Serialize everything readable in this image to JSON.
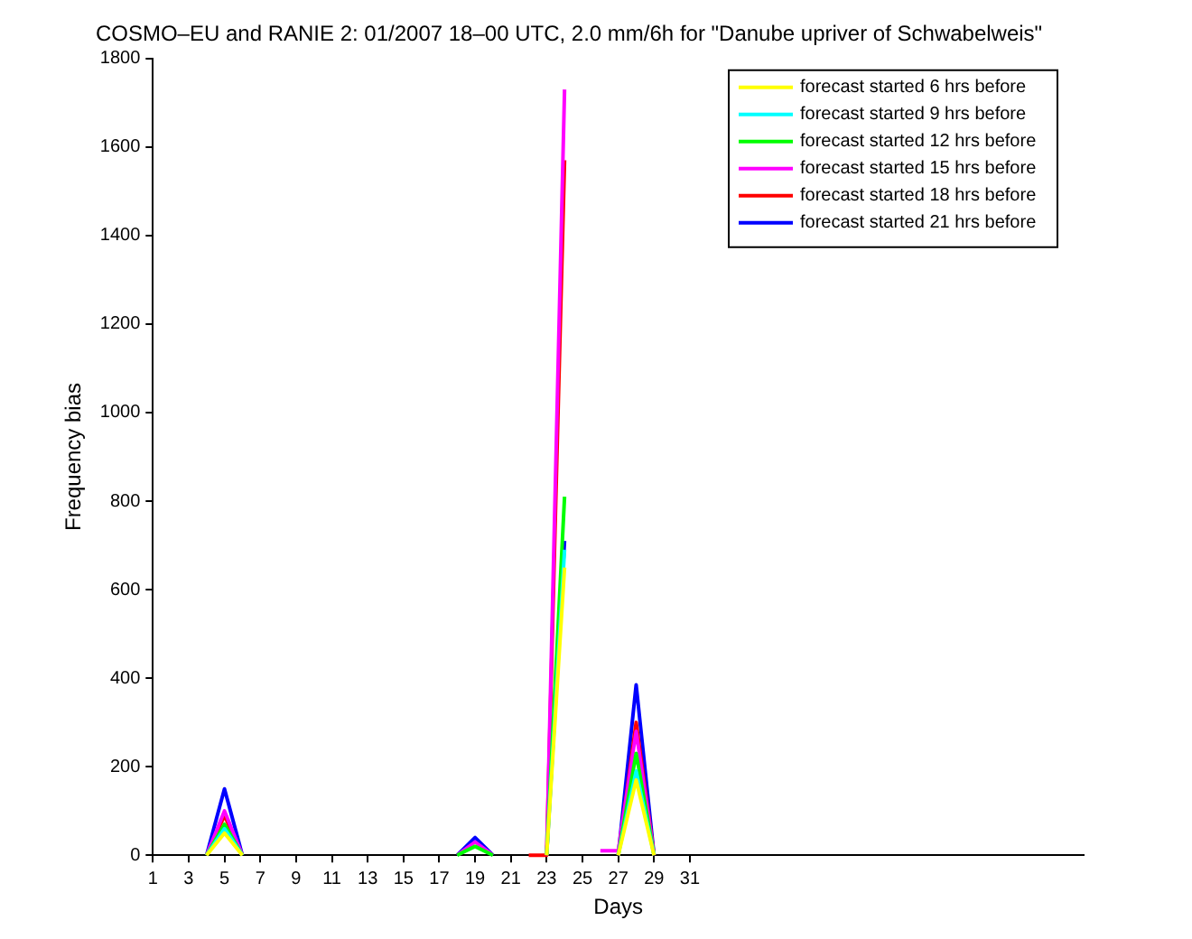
{
  "chart_data": {
    "type": "line",
    "title": "COSMO–EU and RANIE 2: 01/2007 18–00 UTC, 2.0 mm/6h for \"Danube upriver of Schwabelweis\"",
    "xlabel": "Days",
    "ylabel": "Frequency bias",
    "x": [
      4,
      5,
      6,
      7,
      8,
      9,
      10,
      11,
      12,
      13,
      14,
      15,
      16,
      17,
      18,
      19,
      20,
      21,
      22,
      23,
      24,
      25,
      26,
      27,
      28,
      29
    ],
    "series": [
      {
        "name": "forecast started 6 hrs before",
        "color": "#ffff00",
        "values": [
          0,
          50,
          0,
          null,
          null,
          null,
          null,
          null,
          null,
          null,
          null,
          null,
          null,
          null,
          null,
          null,
          null,
          null,
          null,
          0,
          650,
          null,
          null,
          0,
          170,
          0
        ]
      },
      {
        "name": "forecast started 9 hrs before",
        "color": "#00ffff",
        "values": [
          0,
          60,
          0,
          null,
          null,
          null,
          null,
          null,
          null,
          null,
          null,
          null,
          null,
          null,
          null,
          null,
          null,
          null,
          null,
          0,
          690,
          null,
          null,
          0,
          190,
          0
        ]
      },
      {
        "name": "forecast started 12 hrs before",
        "color": "#00ff00",
        "values": [
          0,
          70,
          0,
          null,
          null,
          null,
          null,
          null,
          null,
          null,
          null,
          null,
          null,
          null,
          0,
          20,
          0,
          null,
          null,
          0,
          810,
          null,
          null,
          0,
          230,
          0
        ]
      },
      {
        "name": "forecast started 15 hrs before",
        "color": "#ff00ff",
        "values": [
          0,
          100,
          0,
          null,
          null,
          null,
          null,
          null,
          null,
          null,
          null,
          null,
          null,
          null,
          0,
          30,
          0,
          null,
          null,
          0,
          1730,
          null,
          10,
          10,
          280,
          0
        ]
      },
      {
        "name": "forecast started 18 hrs before",
        "color": "#ff0000",
        "values": [
          0,
          90,
          0,
          null,
          null,
          null,
          null,
          null,
          null,
          null,
          null,
          null,
          null,
          null,
          null,
          null,
          null,
          null,
          0,
          0,
          1570,
          null,
          null,
          0,
          300,
          0
        ]
      },
      {
        "name": "forecast started 21 hrs before",
        "color": "#0000ff",
        "values": [
          0,
          150,
          0,
          null,
          null,
          null,
          null,
          null,
          null,
          null,
          null,
          null,
          null,
          null,
          0,
          40,
          0,
          null,
          null,
          0,
          710,
          null,
          null,
          0,
          385,
          0
        ]
      }
    ],
    "xlim": [
      1,
      53
    ],
    "xticks": [
      1,
      3,
      5,
      7,
      9,
      11,
      13,
      15,
      17,
      19,
      21,
      23,
      25,
      27,
      29,
      31
    ],
    "ylim": [
      0,
      1800
    ],
    "yticks": [
      0,
      200,
      400,
      600,
      800,
      1000,
      1200,
      1400,
      1600,
      1800
    ],
    "grid": false,
    "legend": "top right",
    "marker": "none",
    "line_style": "solid"
  }
}
